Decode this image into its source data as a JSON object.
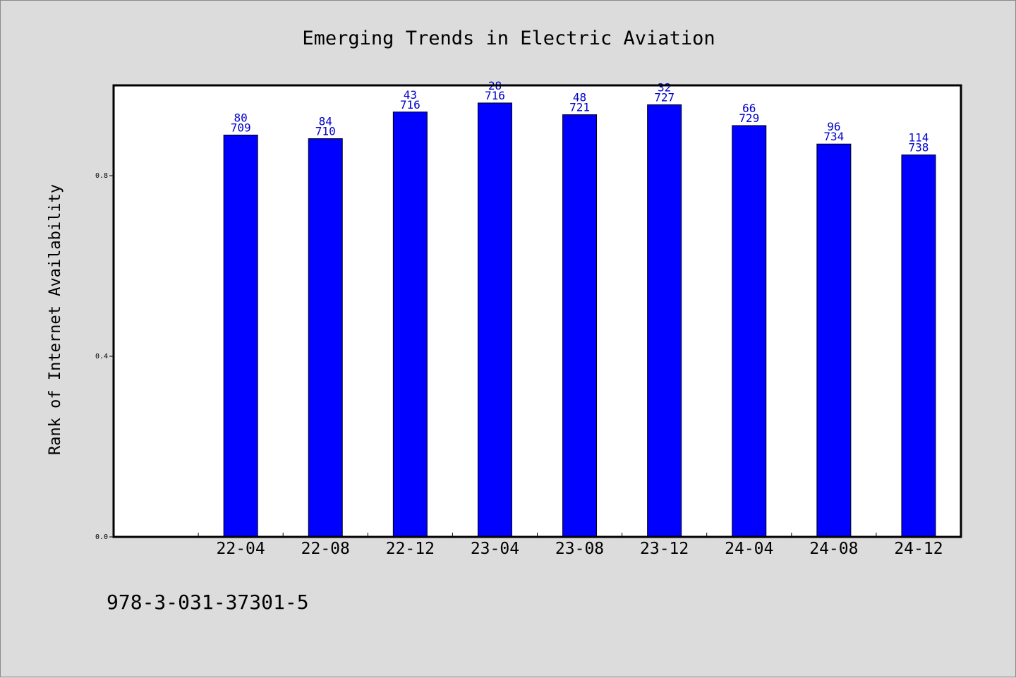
{
  "chart_data": {
    "type": "bar",
    "title": "Emerging Trends in Electric Aviation",
    "xlabel": "",
    "ylabel": "Rank of Internet Availability",
    "categories": [
      "22-04",
      "22-08",
      "22-12",
      "23-04",
      "23-08",
      "23-12",
      "24-04",
      "24-08",
      "24-12"
    ],
    "values": [
      0.89,
      0.882,
      0.941,
      0.961,
      0.935,
      0.957,
      0.911,
      0.87,
      0.846
    ],
    "label_top": [
      "80",
      "84",
      "43",
      "28",
      "48",
      "32",
      "66",
      "96",
      "114"
    ],
    "label_bottom": [
      "709",
      "710",
      "716",
      "716",
      "721",
      "727",
      "729",
      "734",
      "738"
    ],
    "yticks": [
      "0.0",
      "0.4",
      "0.8"
    ],
    "ytick_values": [
      0.0,
      0.4,
      0.8
    ],
    "ylim": [
      0,
      1.0
    ],
    "bar_color": "#0000ff",
    "label_color": "#0000cc",
    "grid": false
  },
  "footer": {
    "code": "978-3-031-37301-5"
  }
}
